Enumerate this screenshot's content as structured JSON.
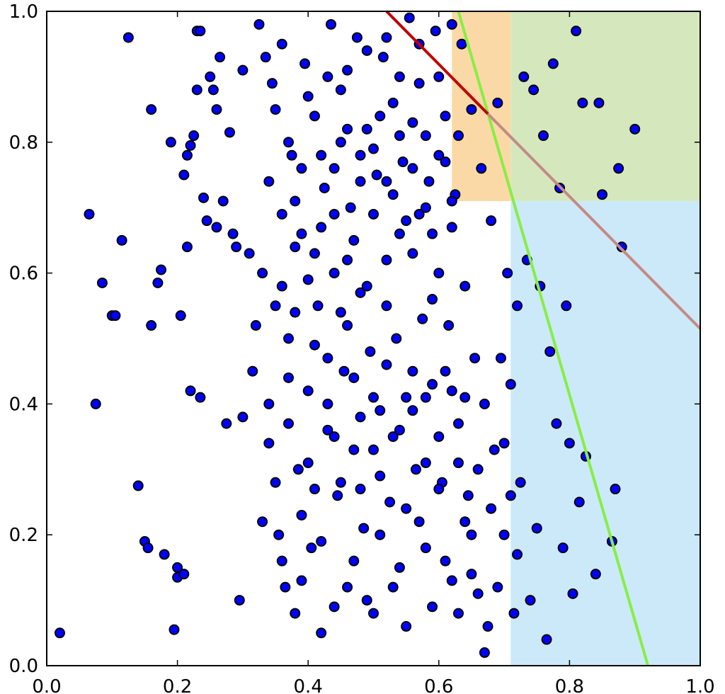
{
  "chart_data": {
    "type": "scatter",
    "title": "",
    "xlabel": "",
    "ylabel": "",
    "xlim": [
      0.0,
      1.0
    ],
    "ylim": [
      0.0,
      1.0
    ],
    "grid": false,
    "x_ticks": [
      "0.0",
      "0.2",
      "0.4",
      "0.6",
      "0.8",
      "1.0"
    ],
    "y_ticks": [
      "0.0",
      "0.2",
      "0.4",
      "0.6",
      "0.8",
      "1.0"
    ],
    "colors": {
      "points": "#0000ff",
      "point_edge": "#000000",
      "orange_region": "#fbd9a6",
      "green_region": "#d5e8bd",
      "blue_region": "#cce9fa",
      "green_line": "#88ee44",
      "red_line": "#c00000",
      "red_line_faded": "#c48a86"
    },
    "regions": [
      {
        "name": "orange",
        "x": [
          0.62,
          0.71
        ],
        "y": [
          0.71,
          1.0
        ]
      },
      {
        "name": "green",
        "x": [
          0.71,
          1.0
        ],
        "y": [
          0.71,
          1.0
        ]
      },
      {
        "name": "blue",
        "x": [
          0.71,
          1.0
        ],
        "y": [
          0.0,
          0.71
        ]
      }
    ],
    "lines": [
      {
        "name": "green-line",
        "x": [
          0.63,
          0.92
        ],
        "y": [
          1.0,
          0.0
        ]
      },
      {
        "name": "red-line",
        "x": [
          0.52,
          1.0
        ],
        "y": [
          1.0,
          0.515
        ]
      }
    ],
    "series": [
      {
        "points": [
          [
            0.02,
            0.05
          ],
          [
            0.065,
            0.69
          ],
          [
            0.075,
            0.4
          ],
          [
            0.085,
            0.585
          ],
          [
            0.1,
            0.535
          ],
          [
            0.105,
            0.535
          ],
          [
            0.115,
            0.65
          ],
          [
            0.125,
            0.96
          ],
          [
            0.14,
            0.275
          ],
          [
            0.15,
            0.19
          ],
          [
            0.155,
            0.18
          ],
          [
            0.16,
            0.85
          ],
          [
            0.16,
            0.52
          ],
          [
            0.17,
            0.585
          ],
          [
            0.175,
            0.605
          ],
          [
            0.18,
            0.17
          ],
          [
            0.19,
            0.8
          ],
          [
            0.195,
            0.055
          ],
          [
            0.2,
            0.15
          ],
          [
            0.2,
            0.135
          ],
          [
            0.205,
            0.535
          ],
          [
            0.21,
            0.14
          ],
          [
            0.21,
            0.75
          ],
          [
            0.215,
            0.78
          ],
          [
            0.215,
            0.64
          ],
          [
            0.22,
            0.42
          ],
          [
            0.22,
            0.795
          ],
          [
            0.225,
            0.81
          ],
          [
            0.23,
            0.97
          ],
          [
            0.23,
            0.88
          ],
          [
            0.235,
            0.97
          ],
          [
            0.235,
            0.41
          ],
          [
            0.24,
            0.715
          ],
          [
            0.245,
            0.68
          ],
          [
            0.25,
            0.9
          ],
          [
            0.255,
            0.88
          ],
          [
            0.26,
            0.67
          ],
          [
            0.26,
            0.85
          ],
          [
            0.265,
            0.93
          ],
          [
            0.27,
            0.71
          ],
          [
            0.275,
            0.37
          ],
          [
            0.28,
            0.815
          ],
          [
            0.285,
            0.66
          ],
          [
            0.29,
            0.64
          ],
          [
            0.295,
            0.1
          ],
          [
            0.3,
            0.91
          ],
          [
            0.3,
            0.38
          ],
          [
            0.31,
            0.63
          ],
          [
            0.315,
            0.45
          ],
          [
            0.32,
            0.52
          ],
          [
            0.325,
            0.98
          ],
          [
            0.33,
            0.6
          ],
          [
            0.335,
            0.93
          ],
          [
            0.34,
            0.4
          ],
          [
            0.345,
            0.89
          ],
          [
            0.35,
            0.55
          ],
          [
            0.355,
            0.2
          ],
          [
            0.36,
            0.95
          ],
          [
            0.365,
            0.12
          ],
          [
            0.37,
            0.5
          ],
          [
            0.375,
            0.78
          ],
          [
            0.38,
            0.08
          ],
          [
            0.385,
            0.3
          ],
          [
            0.39,
            0.66
          ],
          [
            0.395,
            0.92
          ],
          [
            0.4,
            0.42
          ],
          [
            0.405,
            0.18
          ],
          [
            0.41,
            0.84
          ],
          [
            0.415,
            0.55
          ],
          [
            0.42,
            0.05
          ],
          [
            0.425,
            0.73
          ],
          [
            0.43,
            0.36
          ],
          [
            0.435,
            0.98
          ],
          [
            0.44,
            0.6
          ],
          [
            0.445,
            0.26
          ],
          [
            0.45,
            0.88
          ],
          [
            0.455,
            0.45
          ],
          [
            0.46,
            0.12
          ],
          [
            0.465,
            0.7
          ],
          [
            0.47,
            0.33
          ],
          [
            0.475,
            0.96
          ],
          [
            0.48,
            0.57
          ],
          [
            0.485,
            0.21
          ],
          [
            0.49,
            0.82
          ],
          [
            0.495,
            0.48
          ],
          [
            0.5,
            0.08
          ],
          [
            0.505,
            0.75
          ],
          [
            0.51,
            0.39
          ],
          [
            0.515,
            0.93
          ],
          [
            0.52,
            0.62
          ],
          [
            0.525,
            0.25
          ],
          [
            0.53,
            0.86
          ],
          [
            0.535,
            0.5
          ],
          [
            0.54,
            0.15
          ],
          [
            0.545,
            0.77
          ],
          [
            0.55,
            0.41
          ],
          [
            0.555,
            0.99
          ],
          [
            0.56,
            0.63
          ],
          [
            0.565,
            0.3
          ],
          [
            0.57,
            0.89
          ],
          [
            0.575,
            0.53
          ],
          [
            0.58,
            0.18
          ],
          [
            0.585,
            0.74
          ],
          [
            0.59,
            0.43
          ],
          [
            0.595,
            0.97
          ],
          [
            0.6,
            0.6
          ],
          [
            0.605,
            0.28
          ],
          [
            0.61,
            0.84
          ],
          [
            0.615,
            0.52
          ],
          [
            0.62,
            0.13
          ],
          [
            0.625,
            0.72
          ],
          [
            0.63,
            0.37
          ],
          [
            0.635,
            0.95
          ],
          [
            0.64,
            0.58
          ],
          [
            0.645,
            0.26
          ],
          [
            0.65,
            0.85
          ],
          [
            0.655,
            0.47
          ],
          [
            0.66,
            0.11
          ],
          [
            0.665,
            0.76
          ],
          [
            0.67,
            0.4
          ],
          [
            0.675,
            0.06
          ],
          [
            0.68,
            0.68
          ],
          [
            0.685,
            0.33
          ],
          [
            0.69,
            0.86
          ],
          [
            0.695,
            0.47
          ],
          [
            0.7,
            0.2
          ],
          [
            0.705,
            0.6
          ],
          [
            0.71,
            0.43
          ],
          [
            0.715,
            0.08
          ],
          [
            0.72,
            0.55
          ],
          [
            0.725,
            0.28
          ],
          [
            0.73,
            0.9
          ],
          [
            0.735,
            0.62
          ],
          [
            0.74,
            0.1
          ],
          [
            0.745,
            0.88
          ],
          [
            0.75,
            0.21
          ],
          [
            0.755,
            0.58
          ],
          [
            0.76,
            0.81
          ],
          [
            0.765,
            0.04
          ],
          [
            0.77,
            0.48
          ],
          [
            0.775,
            0.92
          ],
          [
            0.78,
            0.37
          ],
          [
            0.785,
            0.73
          ],
          [
            0.79,
            0.18
          ],
          [
            0.795,
            0.55
          ],
          [
            0.8,
            0.34
          ],
          [
            0.805,
            0.11
          ],
          [
            0.81,
            0.97
          ],
          [
            0.815,
            0.25
          ],
          [
            0.82,
            0.86
          ],
          [
            0.825,
            0.32
          ],
          [
            0.84,
            0.14
          ],
          [
            0.845,
            0.86
          ],
          [
            0.85,
            0.72
          ],
          [
            0.865,
            0.19
          ],
          [
            0.87,
            0.27
          ],
          [
            0.875,
            0.76
          ],
          [
            0.88,
            0.64
          ],
          [
            0.9,
            0.82
          ],
          [
            0.36,
            0.58
          ],
          [
            0.37,
            0.37
          ],
          [
            0.38,
            0.71
          ],
          [
            0.39,
            0.23
          ],
          [
            0.4,
            0.59
          ],
          [
            0.41,
            0.27
          ],
          [
            0.42,
            0.67
          ],
          [
            0.43,
            0.47
          ],
          [
            0.44,
            0.35
          ],
          [
            0.45,
            0.54
          ],
          [
            0.46,
            0.62
          ],
          [
            0.47,
            0.44
          ],
          [
            0.48,
            0.27
          ],
          [
            0.49,
            0.58
          ],
          [
            0.5,
            0.41
          ],
          [
            0.51,
            0.29
          ],
          [
            0.52,
            0.46
          ],
          [
            0.53,
            0.35
          ],
          [
            0.54,
            0.66
          ],
          [
            0.55,
            0.24
          ],
          [
            0.56,
            0.39
          ],
          [
            0.57,
            0.69
          ],
          [
            0.58,
            0.31
          ],
          [
            0.59,
            0.56
          ],
          [
            0.6,
            0.35
          ],
          [
            0.61,
            0.45
          ],
          [
            0.62,
            0.67
          ],
          [
            0.63,
            0.31
          ],
          [
            0.64,
            0.41
          ],
          [
            0.65,
            0.2
          ],
          [
            0.44,
            0.76
          ],
          [
            0.46,
            0.82
          ],
          [
            0.48,
            0.74
          ],
          [
            0.5,
            0.79
          ],
          [
            0.52,
            0.74
          ],
          [
            0.54,
            0.81
          ],
          [
            0.56,
            0.76
          ],
          [
            0.58,
            0.7
          ],
          [
            0.6,
            0.78
          ],
          [
            0.62,
            0.71
          ],
          [
            0.33,
            0.22
          ],
          [
            0.34,
            0.34
          ],
          [
            0.35,
            0.28
          ],
          [
            0.36,
            0.16
          ],
          [
            0.37,
            0.44
          ],
          [
            0.38,
            0.54
          ],
          [
            0.39,
            0.13
          ],
          [
            0.4,
            0.31
          ],
          [
            0.41,
            0.49
          ],
          [
            0.42,
            0.19
          ],
          [
            0.43,
            0.4
          ],
          [
            0.44,
            0.09
          ],
          [
            0.45,
            0.28
          ],
          [
            0.46,
            0.52
          ],
          [
            0.47,
            0.16
          ],
          [
            0.48,
            0.38
          ],
          [
            0.49,
            0.1
          ],
          [
            0.5,
            0.33
          ],
          [
            0.51,
            0.2
          ],
          [
            0.52,
            0.55
          ],
          [
            0.53,
            0.12
          ],
          [
            0.54,
            0.36
          ],
          [
            0.55,
            0.06
          ],
          [
            0.56,
            0.45
          ],
          [
            0.57,
            0.22
          ],
          [
            0.58,
            0.41
          ],
          [
            0.59,
            0.09
          ],
          [
            0.6,
            0.27
          ],
          [
            0.61,
            0.16
          ],
          [
            0.62,
            0.42
          ],
          [
            0.63,
            0.08
          ],
          [
            0.64,
            0.22
          ],
          [
            0.65,
            0.14
          ],
          [
            0.66,
            0.3
          ],
          [
            0.67,
            0.02
          ],
          [
            0.68,
            0.24
          ],
          [
            0.69,
            0.12
          ],
          [
            0.7,
            0.34
          ],
          [
            0.71,
            0.26
          ],
          [
            0.72,
            0.17
          ],
          [
            0.34,
            0.74
          ],
          [
            0.35,
            0.85
          ],
          [
            0.36,
            0.69
          ],
          [
            0.37,
            0.8
          ],
          [
            0.38,
            0.64
          ],
          [
            0.39,
            0.76
          ],
          [
            0.4,
            0.87
          ],
          [
            0.41,
            0.63
          ],
          [
            0.42,
            0.78
          ],
          [
            0.43,
            0.9
          ],
          [
            0.44,
            0.69
          ],
          [
            0.45,
            0.8
          ],
          [
            0.46,
            0.91
          ],
          [
            0.47,
            0.65
          ],
          [
            0.48,
            0.78
          ],
          [
            0.49,
            0.94
          ],
          [
            0.5,
            0.69
          ],
          [
            0.51,
            0.84
          ],
          [
            0.52,
            0.96
          ],
          [
            0.53,
            0.72
          ],
          [
            0.54,
            0.9
          ],
          [
            0.55,
            0.68
          ],
          [
            0.56,
            0.83
          ],
          [
            0.57,
            0.95
          ],
          [
            0.58,
            0.81
          ],
          [
            0.59,
            0.66
          ],
          [
            0.6,
            0.9
          ],
          [
            0.61,
            0.77
          ],
          [
            0.62,
            0.98
          ],
          [
            0.63,
            0.81
          ]
        ]
      }
    ]
  }
}
